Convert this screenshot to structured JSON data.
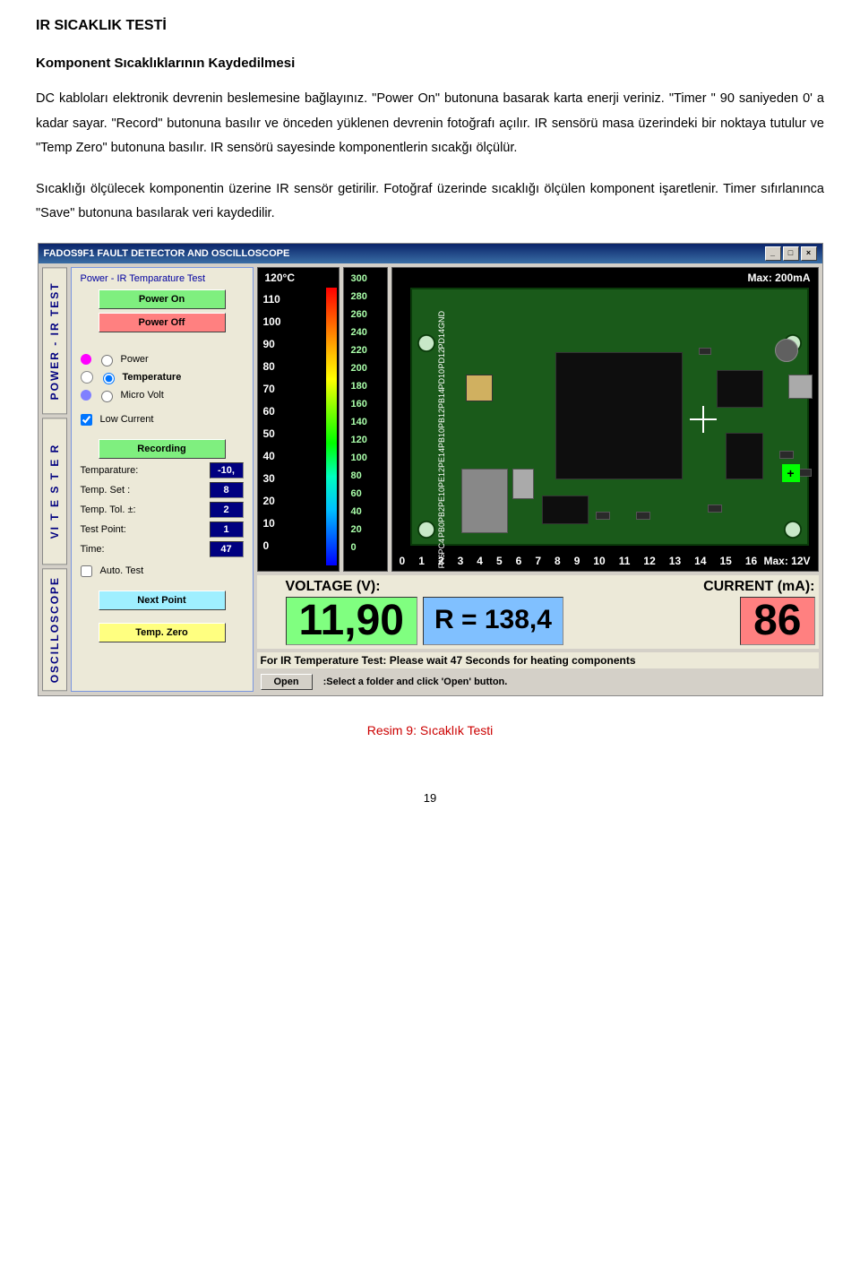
{
  "doc": {
    "title": "IR SICAKLIK TESTİ",
    "subtitle": "Komponent Sıcaklıklarının Kaydedilmesi",
    "para1": "DC kabloları elektronik devrenin beslemesine bağlayınız. \"Power On\" butonuna basarak karta enerji veriniz. \"Timer \" 90 saniyeden 0' a kadar sayar. \"Record\" butonuna basılır ve önceden yüklenen devrenin fotoğrafı açılır. IR sensörü masa üzerindeki bir noktaya tutulur ve \"Temp Zero\" butonuna basılır. IR sensörü sayesinde komponentlerin sıcakğı ölçülür.",
    "para2": "Sıcaklığı ölçülecek komponentin üzerine IR sensör getirilir. Fotoğraf üzerinde sıcaklığı ölçülen komponent işaretlenir. Timer sıfırlanınca \"Save\" butonuna basılarak veri kaydedilir.",
    "caption": "Resim 9: Sıcaklık Testi",
    "page": "19"
  },
  "app": {
    "title": "FADOS9F1 FAULT DETECTOR AND OSCILLOSCOPE",
    "tabs": [
      "POWER - IR TEST",
      "VI  T E S T E R",
      "OSCILLOSCOPE"
    ],
    "group_title": "Power - IR Temparature Test",
    "buttons": {
      "power_on": "Power On",
      "power_off": "Power Off",
      "recording": "Recording",
      "next_point": "Next Point",
      "temp_zero": "Temp. Zero"
    },
    "radios": {
      "power": {
        "label": "Power",
        "color": "#ff00ff",
        "checked": false
      },
      "temperature": {
        "label": "Temperature",
        "color": "#ffffff",
        "checked": true
      },
      "micro_volt": {
        "label": "Micro Volt",
        "color": "#8080ff",
        "checked": false
      }
    },
    "checks": {
      "low_current": {
        "label": "Low Current",
        "checked": true
      },
      "auto_test": {
        "label": "Auto. Test",
        "checked": false
      }
    },
    "fields": {
      "temparature": {
        "label": "Temparature:",
        "value": "-10,"
      },
      "temp_set": {
        "label": "Temp. Set   :",
        "value": "8"
      },
      "temp_tol": {
        "label": "Temp. Tol. ±:",
        "value": "2"
      },
      "test_point": {
        "label": "Test Point:",
        "value": "1"
      },
      "time": {
        "label": "Time:",
        "value": "47"
      }
    },
    "temp_bar": {
      "header": "120°C",
      "ticks": [
        "110",
        "100",
        "90",
        "80",
        "70",
        "60",
        "50",
        "40",
        "30",
        "20",
        "10",
        "0"
      ]
    },
    "ma_bar": {
      "ticks": [
        "300",
        "280",
        "260",
        "240",
        "220",
        "200",
        "180",
        "160",
        "140",
        "120",
        "100",
        "80",
        "60",
        "40",
        "20",
        "0"
      ]
    },
    "pcb": {
      "max_ma": "Max: 200mA",
      "max_v": "Max: 12V",
      "pins": [
        "GND",
        "PD14",
        "PD12",
        "PD10",
        "",
        "PB14",
        "PB12",
        "PB10",
        "PE14",
        "PE12",
        "PE10",
        "PB2",
        "PB0",
        "PC4",
        "PA6",
        "",
        "",
        "",
        ""
      ],
      "x_ticks": [
        "0",
        "1",
        "2",
        "3",
        "4",
        "5",
        "6",
        "7",
        "8",
        "9",
        "10",
        "11",
        "12",
        "13",
        "14",
        "15",
        "16"
      ]
    },
    "readouts": {
      "voltage_label": "VOLTAGE (V):",
      "voltage": "11,90",
      "resistance": "R = 138,4",
      "current_label": "CURRENT (mA):",
      "current": "86"
    },
    "info_line": "For IR Temperature Test: Please wait 47 Seconds for heating components",
    "open": {
      "btn": "Open",
      "hint": ":Select a folder and click 'Open' button."
    }
  }
}
